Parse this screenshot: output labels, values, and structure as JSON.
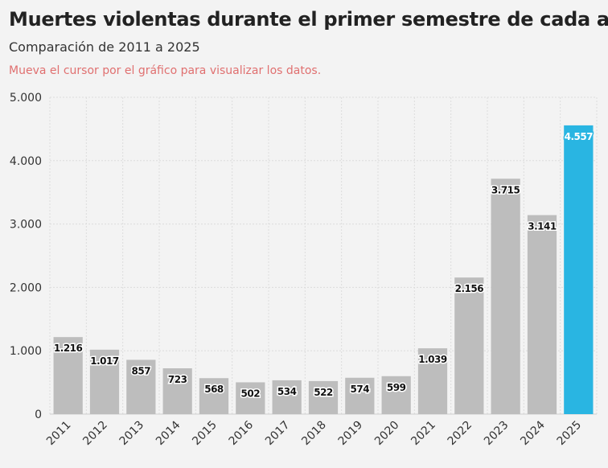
{
  "header": {
    "title": "Muertes violentas durante el primer semestre de cada año",
    "subtitle": "Comparación de 2011 a 2025",
    "note": "Mueva el cursor por el gráfico para visualizar los datos."
  },
  "colors": {
    "bar": "#bdbdbd",
    "highlight": "#29b5e2",
    "grid": "#dcdcdc",
    "axis_text": "#333333",
    "label_text": "#111111",
    "highlight_label_text": "#ffffff"
  },
  "chart_data": {
    "type": "bar",
    "title": "Muertes violentas durante el primer semestre de cada año",
    "subtitle": "Comparación de 2011 a 2025",
    "categories": [
      "2011",
      "2012",
      "2013",
      "2014",
      "2015",
      "2016",
      "2017",
      "2018",
      "2019",
      "2020",
      "2021",
      "2022",
      "2023",
      "2024",
      "2025"
    ],
    "values": [
      1216,
      1017,
      857,
      723,
      568,
      502,
      534,
      522,
      574,
      599,
      1039,
      2156,
      3715,
      3141,
      4557
    ],
    "value_labels": [
      "1.216",
      "1.017",
      "857",
      "723",
      "568",
      "502",
      "534",
      "522",
      "574",
      "599",
      "1.039",
      "2.156",
      "3.715",
      "3.141",
      "4.557"
    ],
    "highlight_category": "2025",
    "ylim": [
      0,
      5000
    ],
    "yticks": [
      0,
      1000,
      2000,
      3000,
      4000,
      5000
    ],
    "ytick_labels": [
      "0",
      "1.000",
      "2.000",
      "3.000",
      "4.000",
      "5.000"
    ],
    "grid": true,
    "legend": "none"
  }
}
